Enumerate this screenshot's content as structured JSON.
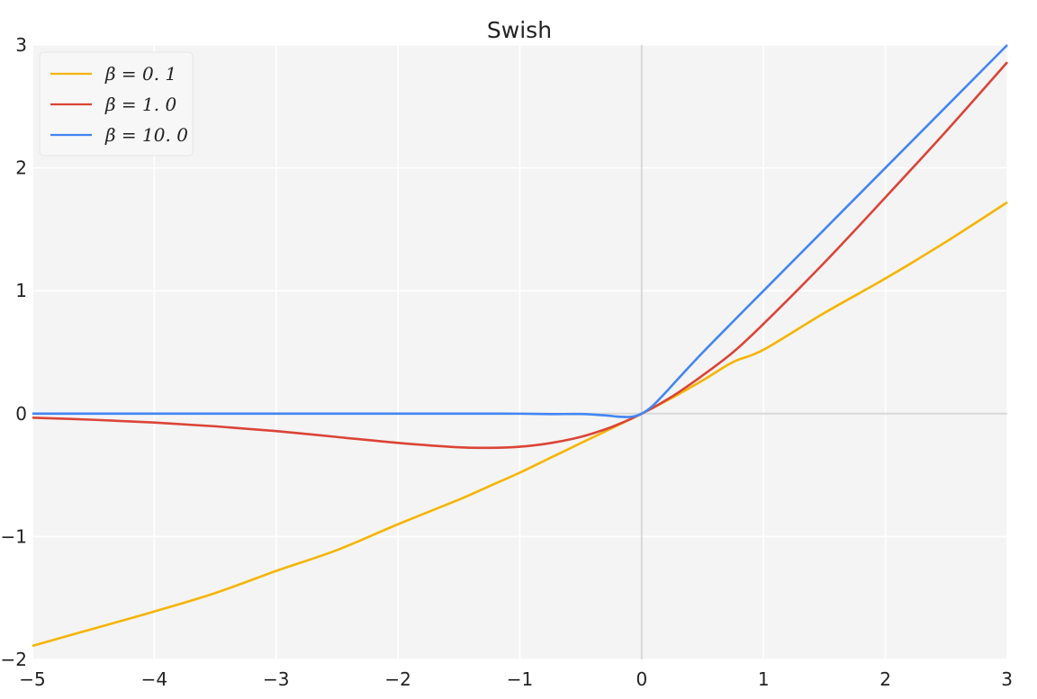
{
  "chart_data": {
    "type": "line",
    "title": "Swish",
    "xlabel": "",
    "ylabel": "",
    "xlim": [
      -5,
      3
    ],
    "ylim": [
      -2,
      3
    ],
    "grid": true,
    "legend_position": "top-left",
    "x_ticks": [
      -5,
      -4,
      -3,
      -2,
      -1,
      0,
      1,
      2,
      3
    ],
    "x_tick_labels": [
      "−5",
      "−4",
      "−3",
      "−2",
      "−1",
      "0",
      "1",
      "2",
      "3"
    ],
    "y_ticks": [
      -2,
      -1,
      0,
      1,
      2,
      3
    ],
    "y_tick_labels": [
      "−2",
      "−1",
      "0",
      "1",
      "2",
      "3"
    ],
    "x": [
      -5,
      -4.5,
      -4,
      -3.5,
      -3,
      -2.5,
      -2,
      -1.5,
      -1.25,
      -1,
      -0.75,
      -0.5,
      -0.3,
      -0.2,
      -0.1,
      -0.05,
      0,
      0.05,
      0.1,
      0.2,
      0.3,
      0.5,
      0.75,
      1,
      1.5,
      2,
      2.5,
      3
    ],
    "series": [
      {
        "name": "β = 0.1",
        "legend_label": "β = 0. 1",
        "color": "#f5b400",
        "values": [
          -1.89,
          -1.75,
          -1.61,
          -1.46,
          -1.28,
          -1.11,
          -0.9,
          -0.7,
          -0.59,
          -0.48,
          -0.36,
          -0.24,
          -0.145,
          -0.097,
          -0.049,
          -0.025,
          0,
          0.025,
          0.051,
          0.103,
          0.157,
          0.27,
          0.42,
          0.52,
          0.82,
          1.1,
          1.4,
          1.72
        ]
      },
      {
        "name": "β = 1.0",
        "legend_label": "β = 1. 0",
        "color": "#db4437",
        "values": [
          -0.033,
          -0.05,
          -0.072,
          -0.103,
          -0.142,
          -0.19,
          -0.238,
          -0.274,
          -0.278,
          -0.269,
          -0.24,
          -0.189,
          -0.128,
          -0.09,
          -0.048,
          -0.024,
          0,
          0.026,
          0.052,
          0.11,
          0.172,
          0.311,
          0.5,
          0.731,
          1.23,
          1.76,
          2.3,
          2.86
        ]
      },
      {
        "name": "β = 10.0",
        "legend_label": "β = 10. 0",
        "color": "#4285f4",
        "values": [
          0,
          0,
          0,
          0,
          0,
          0,
          0,
          0,
          0,
          -0.0005,
          -0.004,
          -0.003,
          -0.014,
          -0.024,
          -0.027,
          -0.019,
          0,
          0.031,
          0.073,
          0.176,
          0.285,
          0.497,
          0.75,
          1.0,
          1.5,
          2.0,
          2.5,
          3.0
        ]
      }
    ]
  }
}
